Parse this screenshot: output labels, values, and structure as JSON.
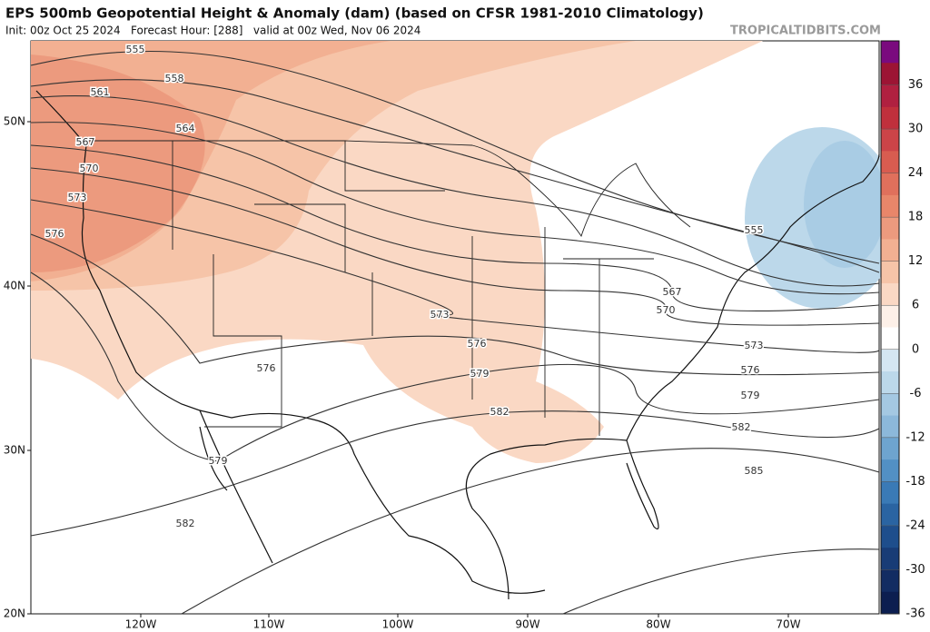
{
  "header": {
    "title": "EPS 500mb Geopotential Height & Anomaly (dam) (based on CFSR 1981-2010 Climatology)",
    "subtitle": "Init: 00z Oct 25 2024   Forecast Hour: [288]   valid at 00z Wed, Nov 06 2024",
    "watermark": "TROPICALTIDBITS.COM"
  },
  "map": {
    "lat_labels": [
      "50N",
      "40N",
      "30N",
      "20N"
    ],
    "lon_labels": [
      "120W",
      "110W",
      "100W",
      "90W",
      "80W",
      "70W"
    ],
    "contour_labels": [
      555,
      558,
      561,
      564,
      567,
      570,
      573,
      576,
      576,
      573,
      576,
      579,
      582,
      579,
      582,
      567,
      570,
      573,
      576,
      579,
      582,
      585,
      555
    ]
  },
  "colorbar": {
    "ticks": [
      36,
      30,
      24,
      18,
      12,
      6,
      0,
      -6,
      -12,
      -18,
      -24,
      -30,
      -36
    ],
    "colors": [
      "#7a0a7e",
      "#9c1434",
      "#b02040",
      "#c0303c",
      "#cc4448",
      "#d85c50",
      "#e0705c",
      "#e8866a",
      "#ec9a7e",
      "#f2b092",
      "#f6c4a8",
      "#fad8c4",
      "#fdf0e8",
      "#ffffff",
      "#d4e6f2",
      "#bcd8ea",
      "#a4c8e2",
      "#8cb8da",
      "#6ea4cf",
      "#5290c4",
      "#3a7ab6",
      "#2a64a2",
      "#1e4e8c",
      "#183c76",
      "#122c62",
      "#0c1e50"
    ]
  }
}
